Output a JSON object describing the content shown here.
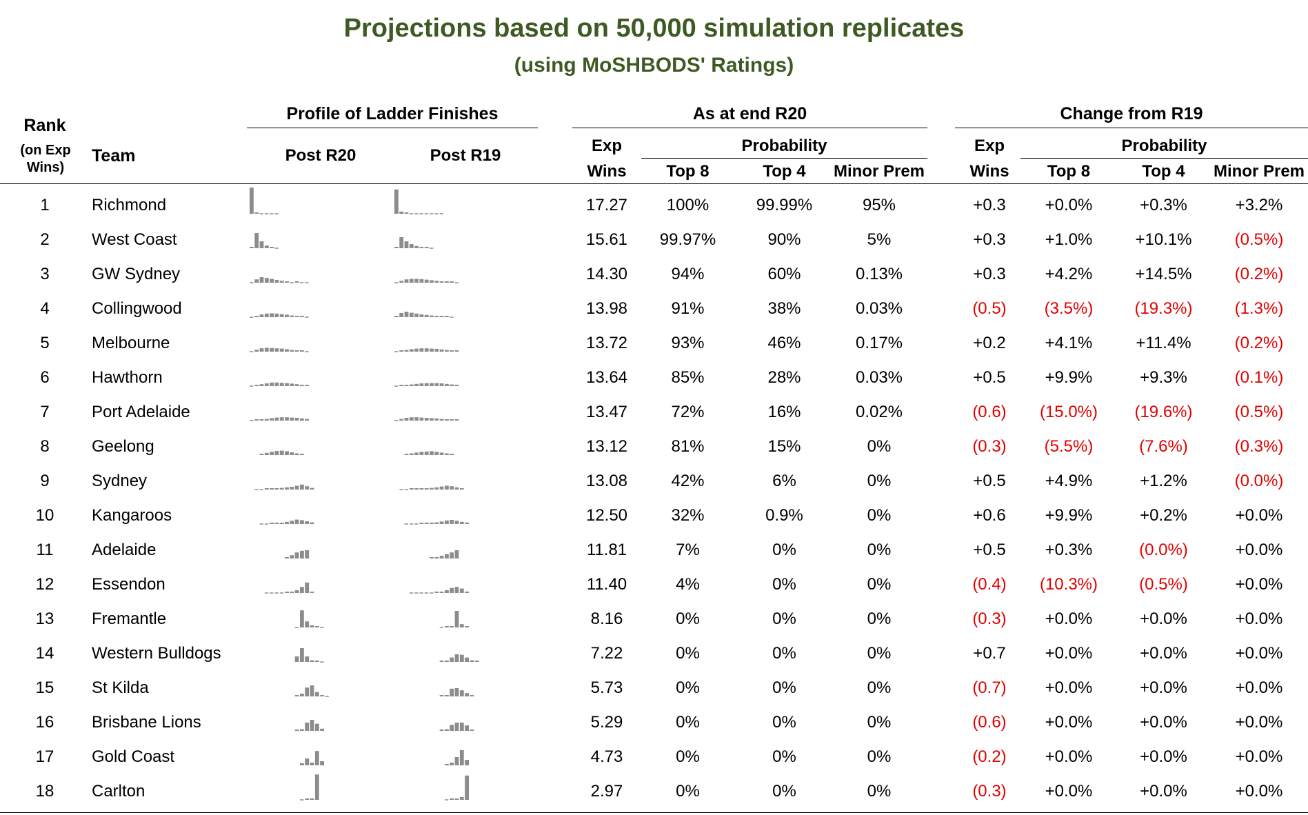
{
  "title": "Projections based on 50,000 simulation replicates",
  "subtitle": "(using MoSHBODS' Ratings)",
  "headers": {
    "rank": [
      "Rank",
      "(on Exp",
      "Wins)"
    ],
    "team": "Team",
    "profile_group": "Profile of Ladder Finishes",
    "post_r20": "Post R20",
    "post_r19": "Post R19",
    "as_at_group": "As at end R20",
    "change_group": "Change from R19",
    "exp": "Exp",
    "wins": "Wins",
    "probability": "Probability",
    "top8": "Top 8",
    "top4": "Top 4",
    "minor_prem": "Minor Prem"
  },
  "colors": {
    "title": "#3e5a23",
    "negative": "#e00000",
    "bar": "#8c8c8c"
  },
  "rows": [
    {
      "rank": "1",
      "team": "Richmond",
      "exp_wins": "17.27",
      "top8": "100%",
      "top4": "99.99%",
      "minor": "95%",
      "d_wins": "+0.3",
      "d_top8": "+0.0%",
      "d_top4": "+0.3%",
      "d_minor": "+3.2%",
      "p20": [
        0.95,
        0.05,
        0,
        0,
        0,
        0
      ],
      "p19": [
        0.88,
        0.08,
        0.03,
        0.01,
        0,
        0,
        0,
        0,
        0,
        0
      ]
    },
    {
      "rank": "2",
      "team": "West Coast",
      "exp_wins": "15.61",
      "top8": "99.97%",
      "top4": "90%",
      "minor": "5%",
      "d_wins": "+0.3",
      "d_top8": "+1.0%",
      "d_top4": "+10.1%",
      "d_minor": "(0.5%)",
      "p20": [
        0.05,
        0.55,
        0.25,
        0.1,
        0.03,
        0.01
      ],
      "p19": [
        0.05,
        0.4,
        0.25,
        0.15,
        0.08,
        0.04,
        0.02,
        0.01
      ]
    },
    {
      "rank": "3",
      "team": "GW Sydney",
      "exp_wins": "14.30",
      "top8": "94%",
      "top4": "60%",
      "minor": "0.13%",
      "d_wins": "+0.3",
      "d_top8": "+4.2%",
      "d_top4": "+14.5%",
      "d_minor": "(0.2%)",
      "p20": [
        0.01,
        0.12,
        0.2,
        0.17,
        0.14,
        0.1,
        0.07,
        0.05,
        0,
        0.02,
        0.01,
        0.01
      ],
      "p19": [
        0.01,
        0.07,
        0.12,
        0.14,
        0.14,
        0.13,
        0.11,
        0.09,
        0.07,
        0.05,
        0.03,
        0.02,
        0.01
      ]
    },
    {
      "rank": "4",
      "team": "Collingwood",
      "exp_wins": "13.98",
      "top8": "91%",
      "top4": "38%",
      "minor": "0.03%",
      "d_wins": "(0.5)",
      "d_top8": "(3.5%)",
      "d_top4": "(19.3%)",
      "d_minor": "(1.3%)",
      "p20": [
        0.01,
        0.05,
        0.1,
        0.13,
        0.14,
        0.13,
        0.11,
        0.09,
        0.06,
        0.04,
        0.02,
        0.01
      ],
      "p19": [
        0.02,
        0.15,
        0.2,
        0.16,
        0.13,
        0.1,
        0.08,
        0.06,
        0.04,
        0.03,
        0.02,
        0.01
      ]
    },
    {
      "rank": "5",
      "team": "Melbourne",
      "exp_wins": "13.72",
      "top8": "93%",
      "top4": "46%",
      "minor": "0.17%",
      "d_wins": "+0.2",
      "d_top8": "+4.1%",
      "d_top4": "+11.4%",
      "d_minor": "(0.2%)",
      "p20": [
        0.01,
        0.07,
        0.12,
        0.14,
        0.13,
        0.12,
        0.11,
        0.09,
        0.06,
        0.04,
        0.02,
        0.01
      ],
      "p19": [
        0.01,
        0.03,
        0.06,
        0.09,
        0.11,
        0.12,
        0.12,
        0.11,
        0.1,
        0.08,
        0.06,
        0.04,
        0.02
      ]
    },
    {
      "rank": "6",
      "team": "Hawthorn",
      "exp_wins": "13.64",
      "top8": "85%",
      "top4": "28%",
      "minor": "0.03%",
      "d_wins": "+0.5",
      "d_top8": "+9.9%",
      "d_top4": "+9.3%",
      "d_minor": "(0.1%)",
      "p20": [
        0.01,
        0.03,
        0.07,
        0.1,
        0.13,
        0.13,
        0.12,
        0.11,
        0.09,
        0.07,
        0.04,
        0.02
      ],
      "p19": [
        0.01,
        0.02,
        0.04,
        0.06,
        0.08,
        0.1,
        0.11,
        0.11,
        0.11,
        0.1,
        0.08,
        0.06,
        0.04
      ]
    },
    {
      "rank": "7",
      "team": "Port Adelaide",
      "exp_wins": "13.47",
      "top8": "72%",
      "top4": "16%",
      "minor": "0.02%",
      "d_wins": "(0.6)",
      "d_top8": "(15.0%)",
      "d_top4": "(19.6%)",
      "d_minor": "(0.5%)",
      "p20": [
        0.01,
        0.02,
        0.04,
        0.06,
        0.09,
        0.11,
        0.12,
        0.12,
        0.11,
        0.1,
        0.08,
        0.06
      ],
      "p19": [
        0.01,
        0.06,
        0.1,
        0.12,
        0.12,
        0.11,
        0.1,
        0.09,
        0.08,
        0.06,
        0.05,
        0.03,
        0.02
      ]
    },
    {
      "rank": "8",
      "team": "Geelong",
      "exp_wins": "13.12",
      "top8": "81%",
      "top4": "15%",
      "minor": "0%",
      "d_wins": "(0.3)",
      "d_top8": "(5.5%)",
      "d_top4": "(7.6%)",
      "d_minor": "(0.3%)",
      "p20": [
        0.02,
        0.08,
        0.12,
        0.15,
        0.16,
        0.14,
        0.1,
        0.06,
        0.03
      ],
      "p19": [
        0.02,
        0.06,
        0.09,
        0.12,
        0.13,
        0.14,
        0.12,
        0.09,
        0.06,
        0.03
      ]
    },
    {
      "rank": "9",
      "team": "Sydney",
      "exp_wins": "13.08",
      "top8": "42%",
      "top4": "6%",
      "minor": "0%",
      "d_wins": "+0.5",
      "d_top8": "+4.9%",
      "d_top4": "+1.2%",
      "d_minor": "(0.0%)",
      "p20": [
        0.01,
        0.01,
        0.02,
        0.03,
        0.04,
        0.06,
        0.08,
        0.1,
        0.14,
        0.18,
        0.12,
        0.06
      ],
      "p19": [
        0.01,
        0.01,
        0.02,
        0.02,
        0.03,
        0.04,
        0.06,
        0.08,
        0.11,
        0.14,
        0.12,
        0.08,
        0.04
      ]
    },
    {
      "rank": "10",
      "team": "Kangaroos",
      "exp_wins": "12.50",
      "top8": "32%",
      "top4": "0.9%",
      "minor": "0%",
      "d_wins": "+0.6",
      "d_top8": "+9.9%",
      "d_top4": "+0.2%",
      "d_minor": "+0.0%",
      "p20": [
        0.01,
        0.01,
        0.02,
        0.03,
        0.05,
        0.08,
        0.12,
        0.16,
        0.14,
        0.1,
        0.06
      ],
      "p19": [
        0.01,
        0.01,
        0.01,
        0.02,
        0.03,
        0.04,
        0.06,
        0.09,
        0.13,
        0.15,
        0.12,
        0.08,
        0.04
      ]
    },
    {
      "rank": "11",
      "team": "Adelaide",
      "exp_wins": "11.81",
      "top8": "7%",
      "top4": "0%",
      "minor": "0%",
      "d_wins": "+0.5",
      "d_top8": "+0.3%",
      "d_top4": "(0.0%)",
      "d_minor": "+0.0%",
      "p20": [
        0.02,
        0.12,
        0.22,
        0.28,
        0.3
      ],
      "p19": [
        0.02,
        0.04,
        0.1,
        0.16,
        0.22,
        0.3
      ]
    },
    {
      "rank": "12",
      "team": "Essendon",
      "exp_wins": "11.40",
      "top8": "4%",
      "top4": "0%",
      "minor": "0%",
      "d_wins": "(0.4)",
      "d_top8": "(10.3%)",
      "d_top4": "(0.5%)",
      "d_minor": "+0.0%",
      "p20": [
        0.01,
        0.01,
        0.01,
        0.01,
        0.02,
        0.04,
        0.1,
        0.22,
        0.38,
        0.05
      ],
      "p19": [
        0.01,
        0.01,
        0,
        0,
        0.01,
        0.02,
        0.04,
        0.1,
        0.18,
        0.22,
        0.16,
        0.04
      ]
    },
    {
      "rank": "13",
      "team": "Fremantle",
      "exp_wins": "8.16",
      "top8": "0%",
      "top4": "0%",
      "minor": "0%",
      "d_wins": "(0.3)",
      "d_top8": "+0.0%",
      "d_top4": "+0.0%",
      "d_minor": "+0.0%",
      "p20": [
        0.01,
        0.62,
        0.22,
        0.08,
        0.02,
        0.01
      ],
      "p19": [
        0.01,
        0.02,
        0.04,
        0.6,
        0.12,
        0.03
      ]
    },
    {
      "rank": "14",
      "team": "Western Bulldogs",
      "exp_wins": "7.22",
      "top8": "0%",
      "top4": "0%",
      "minor": "0%",
      "d_wins": "+0.7",
      "d_top8": "+0.0%",
      "d_top4": "+0.0%",
      "d_minor": "+0.0%",
      "p20": [
        0.2,
        0.5,
        0.2,
        0.06,
        0.02,
        0.01
      ],
      "p19": [
        0.02,
        0.04,
        0.16,
        0.28,
        0.26,
        0.16,
        0.06,
        0.02
      ]
    },
    {
      "rank": "15",
      "team": "St Kilda",
      "exp_wins": "5.73",
      "top8": "0%",
      "top4": "0%",
      "minor": "0%",
      "d_wins": "(0.7)",
      "d_top8": "+0.0%",
      "d_top4": "+0.0%",
      "d_minor": "+0.0%",
      "p20": [
        0.02,
        0.1,
        0.32,
        0.4,
        0.16,
        0.05,
        0.01
      ],
      "p19": [
        0.02,
        0.04,
        0.28,
        0.3,
        0.22,
        0.12,
        0.02
      ]
    },
    {
      "rank": "16",
      "team": "Brisbane Lions",
      "exp_wins": "5.29",
      "top8": "0%",
      "top4": "0%",
      "minor": "0%",
      "d_wins": "(0.6)",
      "d_top8": "+0.0%",
      "d_top4": "+0.0%",
      "d_minor": "+0.0%",
      "p20": [
        0.02,
        0.06,
        0.3,
        0.4,
        0.26,
        0.08
      ],
      "p19": [
        0.02,
        0.06,
        0.22,
        0.3,
        0.3,
        0.2,
        0.05
      ]
    },
    {
      "rank": "17",
      "team": "Gold Coast",
      "exp_wins": "4.73",
      "top8": "0%",
      "top4": "0%",
      "minor": "0%",
      "d_wins": "(0.2)",
      "d_top8": "+0.0%",
      "d_top4": "+0.0%",
      "d_minor": "+0.0%",
      "p20": [
        0.08,
        0.25,
        0.1,
        0.52,
        0.15
      ],
      "p19": [
        0.05,
        0.1,
        0.3,
        0.55,
        0.2
      ]
    },
    {
      "rank": "18",
      "team": "Carlton",
      "exp_wins": "2.97",
      "top8": "0%",
      "top4": "0%",
      "minor": "0%",
      "d_wins": "(0.3)",
      "d_top8": "+0.0%",
      "d_top4": "+0.0%",
      "d_minor": "+0.0%",
      "p20": [
        0.01,
        0.02,
        0.04,
        0.92
      ],
      "p19": [
        0.01,
        0.02,
        0.04,
        0.1,
        0.88
      ]
    }
  ]
}
